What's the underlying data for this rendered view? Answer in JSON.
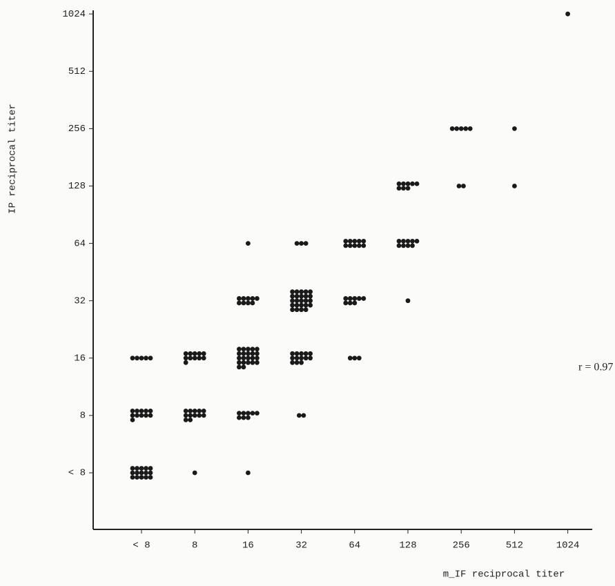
{
  "chart_data": {
    "type": "cluster-scatter",
    "x_label": "m_IF reciprocal titer",
    "y_label": "IP reciprocal titer",
    "x_categories": [
      "< 8",
      "8",
      "16",
      "32",
      "64",
      "128",
      "256",
      "512",
      "1024"
    ],
    "y_categories": [
      "< 8",
      "8",
      "16",
      "32",
      "64",
      "128",
      "256",
      "512",
      "1024"
    ],
    "counts": [
      [
        15,
        1,
        1,
        null,
        null,
        null,
        null,
        null,
        null
      ],
      [
        11,
        12,
        8,
        2,
        null,
        null,
        null,
        null,
        null
      ],
      [
        5,
        11,
        22,
        13,
        3,
        null,
        null,
        null,
        null
      ],
      [
        null,
        null,
        9,
        24,
        8,
        1,
        null,
        null,
        null
      ],
      [
        null,
        null,
        1,
        3,
        10,
        9,
        null,
        null,
        null
      ],
      [
        null,
        null,
        null,
        null,
        null,
        8,
        2,
        1,
        null
      ],
      [
        null,
        null,
        null,
        null,
        null,
        null,
        5,
        1,
        null
      ],
      [
        null,
        null,
        null,
        null,
        null,
        null,
        null,
        null,
        null
      ],
      [
        null,
        null,
        null,
        null,
        null,
        null,
        null,
        null,
        1
      ]
    ],
    "color": "#1a1a1a",
    "annotation": "r = 0.97"
  }
}
